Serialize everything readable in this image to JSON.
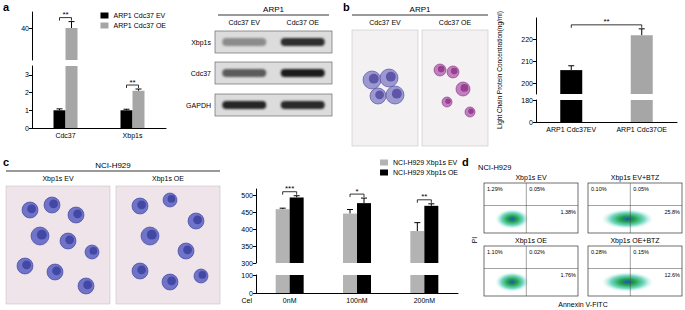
{
  "chart_data": [
    {
      "type": "bar",
      "categories": [
        "Cdc37",
        "Xbp1s"
      ],
      "series": [
        {
          "name": "ARP1 Cdc37 EV",
          "color": "#000000",
          "values": [
            1,
            1
          ],
          "errors": [
            0.08,
            0.06
          ]
        },
        {
          "name": "ARP1 Cdc37 OE",
          "color": "#a6a6a6",
          "values": [
            40,
            2.1
          ],
          "errors": [
            4,
            0.1
          ]
        }
      ],
      "ylim": [
        0,
        50
      ],
      "yticks": [
        0,
        1,
        2,
        3,
        40
      ],
      "y_break": [
        3.5,
        20
      ],
      "legend": "top-right",
      "significance": [
        {
          "text": "**",
          "category": "Cdc37"
        },
        {
          "text": "**",
          "category": "Xbp1s"
        }
      ]
    },
    {
      "type": "bar",
      "y_label": "Light Chain Protein Concentration(ng/ml)",
      "categories": [
        "ARP1 Cdc37EV",
        "ARP1 Cdc37OE"
      ],
      "values": [
        206,
        222
      ],
      "errors": [
        2,
        3
      ],
      "colors": [
        "#000000",
        "#a6a6a6"
      ],
      "ylim": [
        0,
        230
      ],
      "yticks": [
        0,
        180,
        200,
        210,
        220
      ],
      "y_break": [
        185,
        195
      ],
      "significance": [
        {
          "text": "**",
          "between": [
            "ARP1 Cdc37EV",
            "ARP1 Cdc37OE"
          ]
        }
      ]
    },
    {
      "type": "bar",
      "x_label": "Cel",
      "categories": [
        "0nM",
        "100nM",
        "200nM"
      ],
      "series": [
        {
          "name": "NCI-H929 Xbp1s EV",
          "color": "#b3b3b3",
          "values": [
            460,
            447,
            395
          ],
          "errors": [
            3,
            12,
            25
          ]
        },
        {
          "name": "NCI-H929 Xbp1s OE",
          "color": "#000000",
          "values": [
            495,
            478,
            470
          ],
          "errors": [
            5,
            15,
            6
          ]
        }
      ],
      "ylim": [
        0,
        520
      ],
      "yticks": [
        0,
        100,
        300,
        350,
        400,
        450,
        500
      ],
      "y_break": [
        100,
        300
      ],
      "legend": "top-right",
      "significance": [
        {
          "text": "***",
          "category": "0nM"
        },
        {
          "text": "*",
          "category": "100nM"
        },
        {
          "text": "**",
          "category": "200nM"
        }
      ]
    }
  ],
  "panel_labels": [
    "a",
    "b",
    "c",
    "d"
  ],
  "blot": {
    "title": "ARP1",
    "columns": [
      "Cdc37 EV",
      "Cdc37 OE"
    ],
    "rows": [
      "Xbp1s",
      "Cdc37",
      "GAPDH"
    ]
  },
  "micrographs": [
    {
      "title": "ARP1",
      "columns": [
        "Cdc37 EV",
        "Cdc37 OE"
      ]
    },
    {
      "title": "NCI-H929",
      "columns": [
        "Xbp1s EV",
        "Xbp1s OE"
      ]
    }
  ],
  "flow_cytometry": {
    "title": "NCI-H929",
    "x_label": "Annexin V-FITC",
    "y_label": "PI",
    "plots": [
      {
        "label": "Xbp1s EV",
        "upper_left": "1.29%",
        "upper_right": "0.05%",
        "lower_right": "1.38%"
      },
      {
        "label": "Xbp1s EV+BTZ",
        "upper_left": "0.10%",
        "upper_right": "0.05%",
        "lower_right": "25.8%"
      },
      {
        "label": "Xbp1s OE",
        "upper_left": "1.10%",
        "upper_right": "0.02%",
        "lower_right": "1.76%"
      },
      {
        "label": "Xbp1s OE+BTZ",
        "upper_left": "0.28%",
        "upper_right": "0.15%",
        "lower_right": "12.6%"
      }
    ]
  }
}
